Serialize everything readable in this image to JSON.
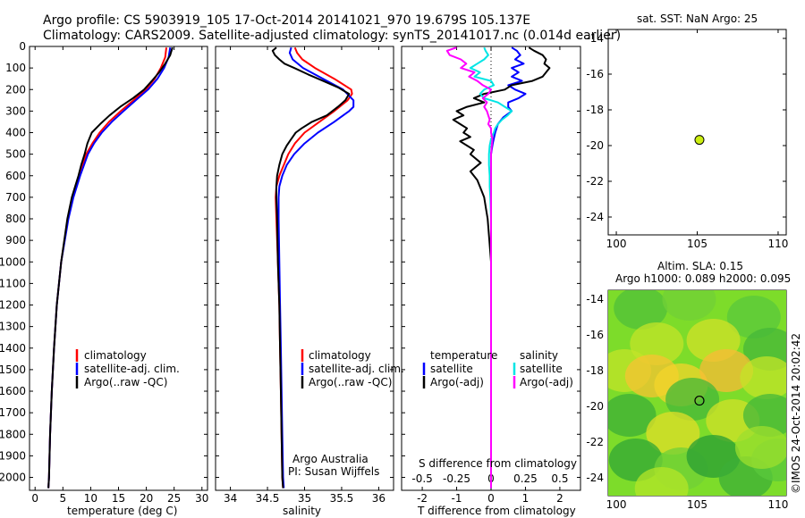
{
  "header": {
    "line1": "Argo profile: CS 5903919_105 17-Oct-2014 20141021_970 19.679S 105.137E",
    "line2": "Climatology: CARS2009. Satellite-adjusted climatology: synTS_20141017.nc (0.014d earlier)"
  },
  "colors": {
    "climatology": "#ff0000",
    "satellite": "#0000ff",
    "argo": "#000000",
    "cyan": "#00e5e5",
    "magenta": "#ff00ff",
    "marker": "#ccee11"
  },
  "panel_temperature": {
    "xlabel": "temperature (deg C)",
    "legend": [
      "climatology",
      "satellite-adj. clim.",
      "Argo(..raw -QC)"
    ]
  },
  "panel_salinity": {
    "xlabel": "salinity",
    "legend": [
      "climatology",
      "satellite-adj. clim.",
      "Argo(..raw -QC)"
    ],
    "note1": "Argo Australia",
    "note2": "PI: Susan Wijffels"
  },
  "panel_difference": {
    "xlabel": "T difference from climatology",
    "xlabel_top": "S difference from climatology",
    "legend_head_left": "temperature",
    "legend_head_right": "salinity",
    "legend_left": [
      "satellite",
      "Argo(-adj)"
    ],
    "legend_right": [
      "satellite",
      "Argo(-adj)"
    ]
  },
  "panel_sst": {
    "title": "sat. SST: NaN Argo: 25"
  },
  "panel_sla": {
    "title1": "Altim. SLA: 0.15",
    "title2": "Argo h1000: 0.089 h2000: 0.095"
  },
  "watermark": "©IMOS 24-Oct-2014 20:02:42",
  "chart_data": [
    {
      "type": "line",
      "title": "",
      "xlabel": "temperature (deg C)",
      "ylabel": "depth",
      "xlim": [
        -1,
        31
      ],
      "ylim": [
        2060,
        0
      ],
      "xticks": [
        0,
        5,
        10,
        15,
        20,
        25,
        30
      ],
      "yticks": [
        0,
        100,
        200,
        300,
        400,
        500,
        600,
        700,
        800,
        900,
        1000,
        1100,
        1200,
        1300,
        1400,
        1500,
        1600,
        1700,
        1800,
        1900,
        2000
      ],
      "series": [
        {
          "name": "climatology",
          "color": "#ff0000",
          "depth": [
            5,
            50,
            100,
            150,
            200,
            250,
            300,
            350,
            400,
            450,
            500,
            600,
            700,
            800,
            1000,
            1200,
            1400,
            1600,
            1800,
            2000,
            2050
          ],
          "values": [
            23.6,
            23.4,
            22.6,
            21.5,
            19.9,
            17.7,
            15.4,
            13.3,
            11.6,
            10.3,
            9.2,
            7.9,
            6.8,
            5.9,
            4.7,
            3.9,
            3.4,
            3.0,
            2.7,
            2.5,
            2.4
          ]
        },
        {
          "name": "satellite-adj. clim.",
          "color": "#0000ff",
          "depth": [
            5,
            50,
            100,
            150,
            200,
            250,
            300,
            350,
            400,
            450,
            500,
            600,
            700,
            800,
            1000,
            1200,
            1400,
            1600,
            1800,
            2000,
            2050
          ],
          "values": [
            24.3,
            24.0,
            23.2,
            22.0,
            20.3,
            18.1,
            15.9,
            13.8,
            12.0,
            10.6,
            9.5,
            8.1,
            6.9,
            6.0,
            4.7,
            3.9,
            3.4,
            3.0,
            2.7,
            2.5,
            2.4
          ]
        },
        {
          "name": "Argo(..raw -QC)",
          "color": "#000000",
          "depth": [
            5,
            40,
            80,
            120,
            160,
            200,
            240,
            280,
            320,
            360,
            400,
            450,
            500,
            550,
            600,
            650,
            700,
            800,
            1000,
            1200,
            1400,
            1600,
            1800,
            2000,
            2050
          ],
          "values": [
            24.7,
            24.3,
            23.4,
            22.3,
            21.0,
            19.6,
            17.6,
            15.3,
            13.4,
            11.7,
            10.2,
            9.4,
            8.9,
            8.3,
            7.8,
            7.2,
            6.6,
            5.8,
            4.7,
            3.9,
            3.4,
            3.0,
            2.7,
            2.5,
            2.4
          ]
        }
      ]
    },
    {
      "type": "line",
      "xlabel": "salinity",
      "ylabel": "depth",
      "xlim": [
        33.8,
        36.2
      ],
      "ylim": [
        2060,
        0
      ],
      "xticks": [
        34,
        34.5,
        35,
        35.5,
        36
      ],
      "series": [
        {
          "name": "climatology",
          "color": "#ff0000",
          "depth": [
            5,
            30,
            60,
            100,
            150,
            200,
            220,
            250,
            300,
            350,
            400,
            450,
            500,
            550,
            600,
            650,
            700,
            800,
            1000,
            1200,
            1400,
            1600,
            1800,
            2000,
            2050
          ],
          "values": [
            34.87,
            34.9,
            34.97,
            35.14,
            35.4,
            35.63,
            35.64,
            35.58,
            35.4,
            35.2,
            35.0,
            34.87,
            34.78,
            34.72,
            34.66,
            34.62,
            34.61,
            34.62,
            34.64,
            34.66,
            34.67,
            34.68,
            34.69,
            34.7,
            34.71
          ]
        },
        {
          "name": "satellite-adj. clim.",
          "color": "#0000ff",
          "depth": [
            5,
            30,
            60,
            100,
            150,
            200,
            250,
            280,
            300,
            350,
            400,
            450,
            500,
            550,
            600,
            650,
            700,
            800,
            1000,
            1200,
            1400,
            1600,
            1800,
            2000,
            2050
          ],
          "values": [
            34.82,
            34.8,
            34.84,
            34.98,
            35.25,
            35.52,
            35.66,
            35.66,
            35.6,
            35.4,
            35.18,
            35.0,
            34.86,
            34.76,
            34.7,
            34.66,
            34.65,
            34.65,
            34.66,
            34.67,
            34.68,
            34.69,
            34.7,
            34.71,
            34.72
          ]
        },
        {
          "name": "Argo(..raw -QC)",
          "color": "#000000",
          "depth": [
            5,
            20,
            40,
            60,
            80,
            100,
            130,
            160,
            190,
            220,
            250,
            280,
            320,
            350,
            380,
            400,
            430,
            460,
            500,
            550,
            600,
            650,
            700,
            800,
            1000,
            1200,
            1400,
            1600,
            1800,
            2000,
            2050
          ],
          "values": [
            34.62,
            34.57,
            34.6,
            34.66,
            34.73,
            34.86,
            35.05,
            35.25,
            35.45,
            35.6,
            35.55,
            35.45,
            35.3,
            35.1,
            34.96,
            34.88,
            34.82,
            34.76,
            34.7,
            34.66,
            34.63,
            34.62,
            34.62,
            34.63,
            34.64,
            34.66,
            34.67,
            34.68,
            34.69,
            34.7,
            34.71
          ]
        }
      ]
    },
    {
      "type": "line",
      "xlabel": "T difference from climatology",
      "x2label": "S difference from climatology",
      "ylabel": "depth",
      "xlim": [
        -2.6,
        2.6
      ],
      "ylim": [
        2060,
        0
      ],
      "xticks": [
        -2,
        -1,
        0,
        1,
        2
      ],
      "x2ticks": [
        -0.5,
        -0.25,
        0,
        0.25,
        0.5
      ],
      "s_to_t_scale": 4,
      "series": [
        {
          "name": "temperature satellite",
          "color": "#0000ff",
          "depth": [
            5,
            20,
            40,
            60,
            80,
            100,
            120,
            140,
            160,
            180,
            200,
            220,
            240,
            260,
            280,
            300,
            330,
            360,
            400,
            450,
            500,
            550,
            600,
            700,
            800,
            1000,
            1200,
            1600,
            2050
          ],
          "values": [
            0.6,
            0.75,
            0.85,
            0.7,
            0.95,
            0.6,
            0.8,
            0.6,
            0.9,
            0.5,
            0.7,
            1.0,
            0.8,
            0.5,
            0.5,
            0.6,
            0.35,
            0.2,
            0.12,
            0.05,
            0.0,
            0.0,
            0.0,
            0.0,
            0.0,
            0.0,
            0.0,
            0.0,
            0.0
          ]
        },
        {
          "name": "temperature Argo(-adj)",
          "color": "#000000",
          "depth": [
            5,
            20,
            40,
            60,
            80,
            100,
            120,
            140,
            160,
            180,
            200,
            220,
            240,
            260,
            280,
            300,
            320,
            340,
            360,
            380,
            400,
            420,
            440,
            460,
            480,
            500,
            540,
            580,
            620,
            660,
            700,
            750,
            800,
            900,
            1000,
            1200,
            1600,
            2050
          ],
          "values": [
            1.1,
            1.25,
            1.5,
            1.6,
            1.55,
            1.7,
            1.6,
            1.5,
            1.2,
            0.6,
            0.4,
            -0.2,
            -0.5,
            -0.2,
            -0.7,
            -1.0,
            -0.8,
            -1.1,
            -0.9,
            -0.7,
            -0.8,
            -0.6,
            -0.9,
            -0.7,
            -0.5,
            -0.6,
            -0.3,
            -0.6,
            -0.4,
            -0.3,
            -0.2,
            -0.15,
            -0.1,
            -0.05,
            0.0,
            0.0,
            0.0,
            0.0
          ]
        },
        {
          "name": "salinity satellite",
          "color": "#00e5e5",
          "depth": [
            5,
            20,
            40,
            60,
            80,
            100,
            120,
            140,
            160,
            180,
            200,
            220,
            240,
            260,
            280,
            300,
            320,
            340,
            360,
            380,
            400,
            430,
            460,
            500,
            550,
            600,
            650,
            700,
            800,
            900,
            1000,
            1200,
            1600,
            2050
          ],
          "values": [
            -0.05,
            -0.04,
            -0.02,
            -0.05,
            -0.1,
            -0.15,
            -0.08,
            -0.12,
            0.0,
            0.02,
            -0.05,
            -0.08,
            -0.05,
            0.05,
            0.1,
            0.15,
            0.12,
            0.08,
            0.05,
            0.03,
            0.02,
            0.0,
            -0.01,
            -0.015,
            -0.015,
            -0.01,
            -0.01,
            -0.005,
            0.0,
            0.0,
            0.0,
            0.0,
            0.0,
            0.0
          ]
        },
        {
          "name": "salinity Argo(-adj)",
          "color": "#ff00ff",
          "depth": [
            5,
            20,
            40,
            60,
            80,
            100,
            120,
            140,
            160,
            180,
            200,
            220,
            240,
            260,
            280,
            300,
            320,
            340,
            360,
            380,
            400,
            430,
            460,
            500,
            550,
            600,
            650,
            700,
            800,
            900,
            1000,
            1200,
            1600,
            2050
          ],
          "values": [
            -0.25,
            -0.32,
            -0.3,
            -0.22,
            -0.18,
            -0.22,
            -0.12,
            -0.16,
            -0.1,
            -0.06,
            0.0,
            -0.02,
            -0.06,
            -0.03,
            -0.05,
            -0.03,
            -0.02,
            -0.01,
            -0.02,
            0.0,
            0.0,
            0.01,
            0.005,
            0.0,
            0.0,
            0.0,
            0.0,
            0.0,
            0.0,
            0.0,
            0.0,
            0.0,
            0.0,
            0.0
          ]
        }
      ]
    },
    {
      "type": "scatter",
      "title": "sat. SST: NaN Argo: 25",
      "xlim": [
        99.5,
        110.5
      ],
      "ylim": [
        -25,
        -13.5
      ],
      "xticks": [
        100,
        105,
        110
      ],
      "yticks": [
        -24,
        -22,
        -20,
        -18,
        -16,
        -14
      ],
      "points": [
        {
          "x": 105.137,
          "y": -19.679
        }
      ]
    },
    {
      "type": "heatmap",
      "title": "Altim. SLA: 0.15",
      "xlim": [
        99.5,
        110.5
      ],
      "ylim": [
        -25,
        -13.5
      ],
      "xticks": [
        100,
        105,
        110
      ],
      "yticks": [
        -24,
        -22,
        -20,
        -18,
        -16,
        -14
      ],
      "points": [
        {
          "x": 105.137,
          "y": -19.679
        }
      ],
      "blobs": [
        {
          "x": 101.5,
          "y": -14.5,
          "level": 0.25
        },
        {
          "x": 104.5,
          "y": -14.0,
          "level": 0.35
        },
        {
          "x": 108.5,
          "y": -15.0,
          "level": 0.3
        },
        {
          "x": 102.5,
          "y": -16.5,
          "level": 0.55
        },
        {
          "x": 106.0,
          "y": -16.3,
          "level": 0.6
        },
        {
          "x": 109.5,
          "y": -16.8,
          "level": 0.2
        },
        {
          "x": 100.5,
          "y": -18.0,
          "level": 0.55
        },
        {
          "x": 102.2,
          "y": -18.3,
          "level": 0.85
        },
        {
          "x": 104.0,
          "y": -18.8,
          "level": 0.75
        },
        {
          "x": 106.8,
          "y": -18.0,
          "level": 0.9
        },
        {
          "x": 109.3,
          "y": -18.4,
          "level": 0.55
        },
        {
          "x": 104.7,
          "y": -19.6,
          "level": 0.2
        },
        {
          "x": 100.8,
          "y": -20.5,
          "level": 0.15
        },
        {
          "x": 103.5,
          "y": -21.5,
          "level": 0.65
        },
        {
          "x": 107.2,
          "y": -20.8,
          "level": 0.6
        },
        {
          "x": 109.5,
          "y": -20.5,
          "level": 0.2
        },
        {
          "x": 101.2,
          "y": -23.0,
          "level": 0.1
        },
        {
          "x": 104.0,
          "y": -23.5,
          "level": 0.35
        },
        {
          "x": 106.0,
          "y": -22.8,
          "level": 0.05
        },
        {
          "x": 108.0,
          "y": -24.0,
          "level": 0.15
        },
        {
          "x": 110.0,
          "y": -23.0,
          "level": 0.3
        },
        {
          "x": 102.8,
          "y": -24.6,
          "level": 0.5
        },
        {
          "x": 109.0,
          "y": -22.3,
          "level": 0.45
        }
      ]
    }
  ]
}
